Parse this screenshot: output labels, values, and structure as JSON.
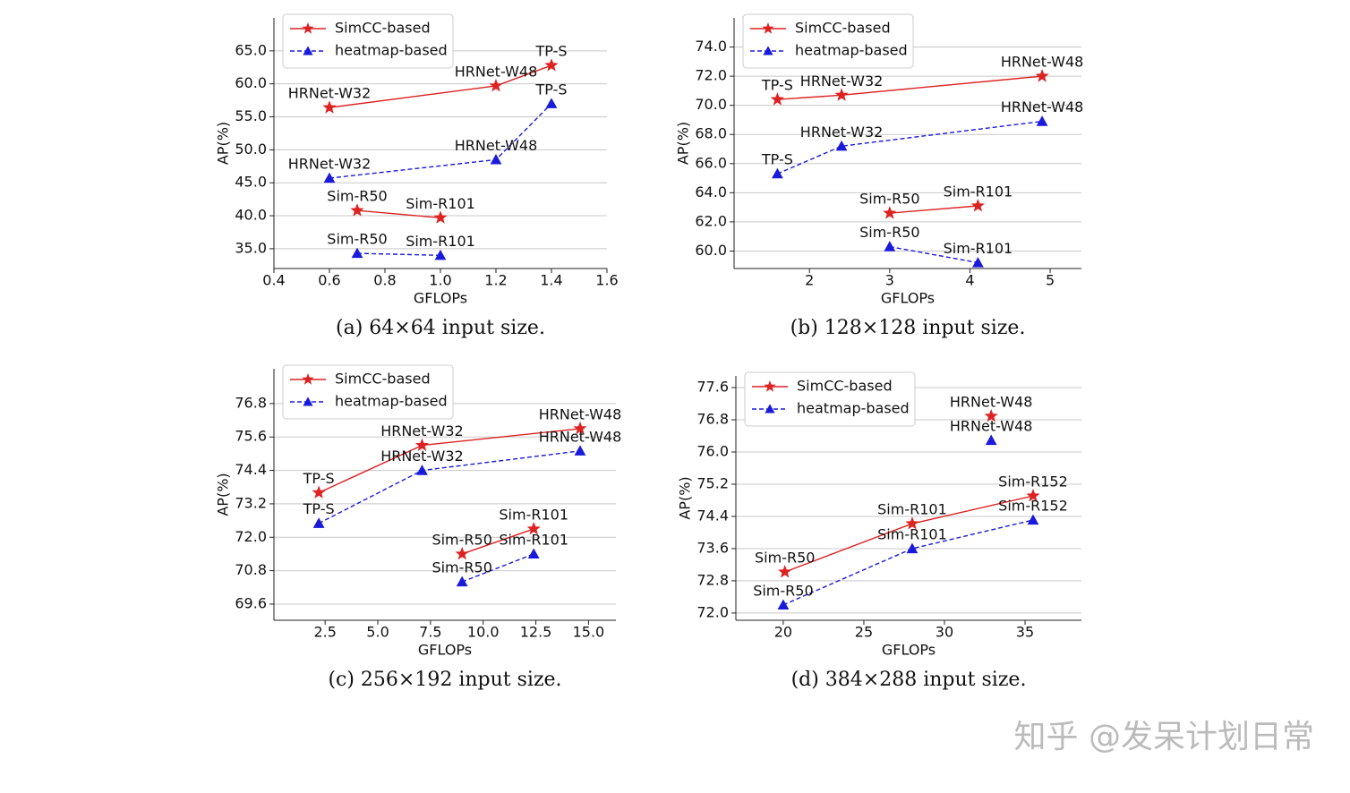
{
  "chart_data": [
    {
      "type": "line",
      "caption": "(a) 64×64 input size.",
      "xlabel": "GFLOPs",
      "ylabel": "AP(%)",
      "grid": true,
      "legend": "upper left",
      "xlim": [
        0.4,
        1.6
      ],
      "xticks": [
        0.4,
        0.6,
        0.8,
        {
          "value": 1,
          "label": "1.0"
        },
        1.2,
        1.4,
        1.6
      ],
      "ylim": [
        32,
        70
      ],
      "yticks": [
        {
          "value": 35,
          "label": "35.0"
        },
        {
          "value": 40,
          "label": "40.0"
        },
        {
          "value": 45,
          "label": "45.0"
        },
        {
          "value": 50,
          "label": "50.0"
        },
        {
          "value": 55,
          "label": "55.0"
        },
        {
          "value": 60,
          "label": "60.0"
        },
        {
          "value": 65,
          "label": "65.0"
        }
      ],
      "series": [
        {
          "name": "SimCC-based",
          "color": "#dd2222",
          "marker": "star",
          "dash": false,
          "x": [
            0.6,
            1.2,
            1.4,
            null,
            0.7,
            1.0
          ],
          "values": [
            56.4,
            59.7,
            62.8,
            null,
            40.8,
            39.7
          ],
          "labels": [
            "HRNet-W32",
            "HRNet-W48",
            "TP-S",
            null,
            "Sim-R50",
            "Sim-R101"
          ]
        },
        {
          "name": "heatmap-based",
          "color": "#1a1adb",
          "marker": "triangle",
          "dash": true,
          "x": [
            0.6,
            1.2,
            1.4,
            null,
            0.7,
            1.0
          ],
          "values": [
            45.7,
            48.5,
            57.0,
            null,
            34.3,
            34.0
          ],
          "labels": [
            "HRNet-W32",
            "HRNet-W48",
            "TP-S",
            null,
            "Sim-R50",
            "Sim-R101"
          ]
        }
      ]
    },
    {
      "type": "line",
      "caption": "(b) 128×128 input size.",
      "xlabel": "GFLOPs",
      "ylabel": "AP(%)",
      "grid": true,
      "legend": "upper left",
      "xlim": [
        1.06,
        5.39
      ],
      "xticks": [
        2,
        3,
        4,
        5
      ],
      "ylim": [
        58.8,
        76
      ],
      "yticks": [
        {
          "value": 60,
          "label": "60.0"
        },
        {
          "value": 62,
          "label": "62.0"
        },
        {
          "value": 64,
          "label": "64.0"
        },
        {
          "value": 66,
          "label": "66.0"
        },
        {
          "value": 68,
          "label": "68.0"
        },
        {
          "value": 70,
          "label": "70.0"
        },
        {
          "value": 72,
          "label": "72.0"
        },
        {
          "value": 74,
          "label": "74.0"
        }
      ],
      "series": [
        {
          "name": "SimCC-based",
          "color": "#dd2222",
          "marker": "star",
          "dash": false,
          "x": [
            1.6,
            2.4,
            4.9,
            null,
            3.0,
            4.1
          ],
          "values": [
            70.4,
            70.7,
            72.0,
            null,
            62.6,
            63.1
          ],
          "labels": [
            "TP-S",
            "HRNet-W32",
            "HRNet-W48",
            null,
            "Sim-R50",
            "Sim-R101"
          ]
        },
        {
          "name": "heatmap-based",
          "color": "#1a1adb",
          "marker": "triangle",
          "dash": true,
          "x": [
            1.6,
            2.4,
            4.9,
            null,
            3.0,
            4.1
          ],
          "values": [
            65.3,
            67.2,
            68.9,
            null,
            60.3,
            59.2
          ],
          "labels": [
            "TP-S",
            "HRNet-W32",
            "HRNet-W48",
            null,
            "Sim-R50",
            "Sim-R101"
          ]
        }
      ]
    },
    {
      "type": "line",
      "caption": "(c) 256×192 input size.",
      "xlabel": "GFLOPs",
      "ylabel": "AP(%)",
      "grid": true,
      "legend": "upper left",
      "xlim": [
        0.07,
        16.3
      ],
      "xticks": [
        2.5,
        {
          "value": 5,
          "label": "5.0"
        },
        7.5,
        {
          "value": 10,
          "label": "10.0"
        },
        12.5,
        {
          "value": 15,
          "label": "15.0"
        }
      ],
      "ylim": [
        69.02,
        78.05
      ],
      "yticks": [
        69.6,
        70.8,
        {
          "value": 72,
          "label": "72.0"
        },
        73.2,
        74.4,
        75.6,
        76.8
      ],
      "series": [
        {
          "name": "SimCC-based",
          "color": "#dd2222",
          "marker": "star",
          "dash": false,
          "x": [
            2.2,
            7.1,
            14.6,
            null,
            9.0,
            12.4
          ],
          "values": [
            73.6,
            75.3,
            75.9,
            null,
            71.4,
            72.3
          ],
          "labels": [
            "TP-S",
            "HRNet-W32",
            "HRNet-W48",
            null,
            "Sim-R50",
            "Sim-R101"
          ]
        },
        {
          "name": "heatmap-based",
          "color": "#1a1adb",
          "marker": "triangle",
          "dash": true,
          "x": [
            2.2,
            7.1,
            14.6,
            null,
            9.0,
            12.4
          ],
          "values": [
            72.5,
            74.4,
            75.1,
            null,
            70.4,
            71.4
          ],
          "labels": [
            "TP-S",
            "HRNet-W32",
            "HRNet-W48",
            null,
            "Sim-R50",
            "Sim-R101"
          ]
        }
      ]
    },
    {
      "type": "line",
      "caption": "(d) 384×288 input size.",
      "xlabel": "GFLOPs",
      "ylabel": "AP(%)",
      "grid": true,
      "legend": "upper left",
      "xlim": [
        17.06,
        38.5
      ],
      "xticks": [
        20,
        25,
        30,
        35
      ],
      "ylim": [
        71.82,
        77.89
      ],
      "yticks": [
        {
          "value": 72,
          "label": "72.0"
        },
        72.8,
        73.6,
        74.4,
        75.2,
        {
          "value": 76,
          "label": "76.0"
        },
        76.8,
        77.6
      ],
      "series": [
        {
          "name": "SimCC-based",
          "color": "#dd2222",
          "marker": "star",
          "dash": false,
          "x": [
            20.1,
            28,
            35.5,
            null,
            32.9
          ],
          "values": [
            73.02,
            74.22,
            74.91,
            null,
            76.89
          ],
          "labels": [
            "Sim-R50",
            "Sim-R101",
            "Sim-R152",
            null,
            "HRNet-W48"
          ]
        },
        {
          "name": "heatmap-based",
          "color": "#1a1adb",
          "marker": "triangle",
          "dash": true,
          "x": [
            20,
            28,
            35.5,
            null,
            32.9
          ],
          "values": [
            72.2,
            73.6,
            74.31,
            null,
            76.29
          ],
          "labels": [
            "Sim-R50",
            "Sim-R101",
            "Sim-R152",
            null,
            "HRNet-W48"
          ]
        }
      ]
    }
  ],
  "watermark": "知乎 @发呆计划日常"
}
